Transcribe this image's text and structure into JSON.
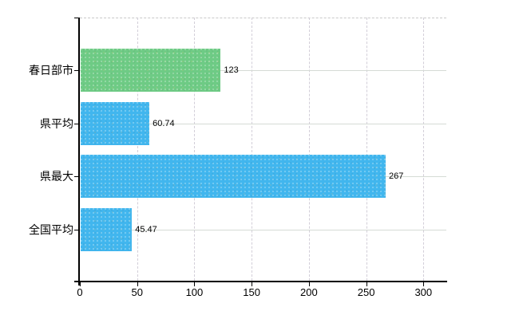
{
  "chart_data": {
    "type": "bar",
    "orientation": "horizontal",
    "title": "",
    "xlabel": "",
    "ylabel": "",
    "categories": [
      "春日部市",
      "県平均",
      "県最大",
      "全国平均"
    ],
    "values": [
      123,
      60.74,
      267,
      45.47
    ],
    "value_labels": [
      "123",
      "60.74",
      "267",
      "45.47"
    ],
    "bar_colors": [
      "#6ecb85",
      "#41b6ee",
      "#41b6ee",
      "#41b6ee"
    ],
    "x_ticks": [
      "0",
      "50",
      "100",
      "150",
      "200",
      "250",
      "300"
    ],
    "x_tick_values": [
      0,
      50,
      100,
      150,
      200,
      250,
      300
    ],
    "xlim": [
      0,
      320
    ],
    "grid": {
      "vertical": "dashed",
      "horizontal": "solid",
      "top_border": "dashed"
    },
    "legend": null,
    "colors": {
      "bar_green": "#6ecb85",
      "bar_blue": "#41b6ee",
      "axis": "#000000",
      "grid_vertical": "#d2ced8",
      "grid_horizontal": "#d5dbd5",
      "plot_top_border": "#c9c9c9",
      "text": "#000000",
      "background": "#ffffff"
    }
  }
}
